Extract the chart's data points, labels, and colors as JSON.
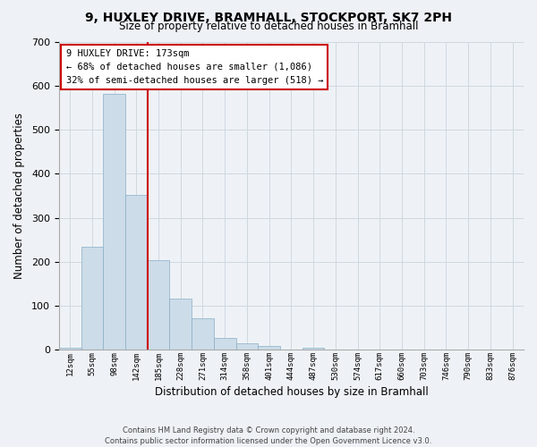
{
  "title": "9, HUXLEY DRIVE, BRAMHALL, STOCKPORT, SK7 2PH",
  "subtitle": "Size of property relative to detached houses in Bramhall",
  "xlabel": "Distribution of detached houses by size in Bramhall",
  "ylabel": "Number of detached properties",
  "bin_labels": [
    "12sqm",
    "55sqm",
    "98sqm",
    "142sqm",
    "185sqm",
    "228sqm",
    "271sqm",
    "314sqm",
    "358sqm",
    "401sqm",
    "444sqm",
    "487sqm",
    "530sqm",
    "574sqm",
    "617sqm",
    "660sqm",
    "703sqm",
    "746sqm",
    "790sqm",
    "833sqm",
    "876sqm"
  ],
  "bar_values": [
    5,
    234,
    581,
    352,
    203,
    116,
    72,
    27,
    15,
    8,
    0,
    4,
    0,
    0,
    0,
    0,
    0,
    0,
    0,
    0,
    0
  ],
  "bar_color": "#ccdce8",
  "bar_edge_color": "#89aec8",
  "ylim": [
    0,
    700
  ],
  "yticks": [
    0,
    100,
    200,
    300,
    400,
    500,
    600,
    700
  ],
  "annotation_title": "9 HUXLEY DRIVE: 173sqm",
  "annotation_line1": "← 68% of detached houses are smaller (1,086)",
  "annotation_line2": "32% of semi-detached houses are larger (518) →",
  "footer_line1": "Contains HM Land Registry data © Crown copyright and database right 2024.",
  "footer_line2": "Contains public sector information licensed under the Open Government Licence v3.0.",
  "bg_color": "#eef2f6",
  "grid_color": "#d0d8e0",
  "vline_color": "#cc0000",
  "annotation_box_color": "#cc0000",
  "annotation_box_fill": "#ffffff"
}
